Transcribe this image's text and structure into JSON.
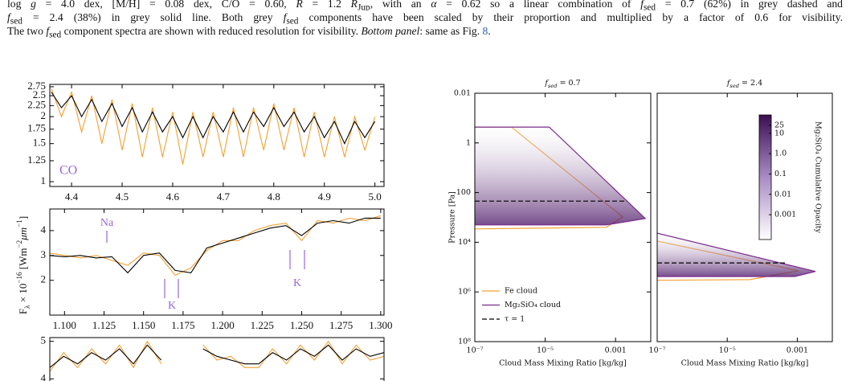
{
  "caption": {
    "lines": [
      [
        {
          "text": "log "
        },
        {
          "text": "g",
          "style": "italic"
        },
        {
          "text": " = 4.0 dex, [M/H] = 0.08 dex, C/O = 0.60, "
        },
        {
          "text": "R",
          "style": "italic"
        },
        {
          "text": " = 1.2 "
        },
        {
          "text": "R",
          "style": "italic"
        },
        {
          "text": "Jup",
          "style": "sub"
        },
        {
          "text": ", with an "
        },
        {
          "text": "α",
          "style": "italic"
        },
        {
          "text": " = 0.62 so a linear combination of "
        },
        {
          "text": "f",
          "style": "italic"
        },
        {
          "text": "sed",
          "style": "sub"
        },
        {
          "text": " = 0.7 (62%) in grey dashed and"
        }
      ],
      [
        {
          "text": "f",
          "style": "italic"
        },
        {
          "text": "sed",
          "style": "sub"
        },
        {
          "text": " = 2.4 (38%) in grey solid line. Both grey "
        },
        {
          "text": "f",
          "style": "italic"
        },
        {
          "text": "sed",
          "style": "sub"
        },
        {
          "text": " components have been scaled by their proportion and multiplied by a factor of 0.6 for visibility."
        }
      ],
      [
        {
          "text": "The two "
        },
        {
          "text": "f",
          "style": "italic"
        },
        {
          "text": "sed",
          "style": "sub"
        },
        {
          "text": " component spectra are shown with reduced resolution for visibility. "
        },
        {
          "text": "Bottom panel",
          "style": "italic"
        },
        {
          "text": ": same as Fig. "
        },
        {
          "text": "8",
          "style": "link"
        },
        {
          "text": "."
        }
      ]
    ]
  },
  "chart_data": [
    {
      "type": "line",
      "yscale": "log",
      "x": [
        4.36,
        4.38,
        4.4,
        4.42,
        4.44,
        4.46,
        4.48,
        4.5,
        4.52,
        4.54,
        4.56,
        4.58,
        4.6,
        4.62,
        4.64,
        4.66,
        4.68,
        4.7,
        4.72,
        4.74,
        4.76,
        4.78,
        4.8,
        4.82,
        4.84,
        4.86,
        4.88,
        4.9,
        4.92,
        4.94,
        4.96,
        4.98,
        5.0
      ],
      "series": [
        {
          "color": "#f5a030",
          "values": [
            2.7,
            2.0,
            2.6,
            1.7,
            2.5,
            1.5,
            2.4,
            1.4,
            2.3,
            1.3,
            2.2,
            1.3,
            2.1,
            1.2,
            2.1,
            1.3,
            2.1,
            1.3,
            2.2,
            1.3,
            2.2,
            1.4,
            2.3,
            1.4,
            2.2,
            1.3,
            2.1,
            1.3,
            2.0,
            1.3,
            2.0,
            1.4,
            2.0
          ]
        },
        {
          "color": "#000000",
          "values": [
            2.6,
            2.2,
            2.5,
            2.0,
            2.4,
            1.9,
            2.3,
            1.8,
            2.2,
            1.7,
            2.1,
            1.7,
            2.0,
            1.6,
            2.0,
            1.6,
            2.0,
            1.7,
            2.1,
            1.7,
            2.1,
            1.8,
            2.2,
            1.8,
            2.1,
            1.7,
            2.0,
            1.6,
            1.9,
            1.5,
            1.9,
            1.6,
            1.9
          ]
        }
      ],
      "xlim": [
        4.357,
        5.018
      ],
      "xticks": [
        4.4,
        4.5,
        4.6,
        4.7,
        4.8,
        4.9,
        {
          "value": 5,
          "label": "5.0"
        }
      ],
      "ylim": [
        0.95,
        2.82
      ],
      "yticks": [
        1,
        1.25,
        1.5,
        1.75,
        2,
        2.25,
        2.5,
        2.75
      ],
      "annotation_color": "#9966dd",
      "annotations": [
        {
          "text": "CO"
        }
      ]
    },
    {
      "type": "line",
      "yscale": "linear",
      "x": [
        1.09,
        1.1,
        1.11,
        1.12,
        1.13,
        1.14,
        1.15,
        1.16,
        1.17,
        1.18,
        1.19,
        1.2,
        1.21,
        1.22,
        1.23,
        1.24,
        1.25,
        1.26,
        1.27,
        1.28,
        1.29,
        1.3
      ],
      "series": [
        {
          "color": "#f5a030",
          "values": [
            3.1,
            3.0,
            2.9,
            3.0,
            2.8,
            2.6,
            3.1,
            3.0,
            2.2,
            2.5,
            3.2,
            3.6,
            3.6,
            4.0,
            4.2,
            4.3,
            3.6,
            4.4,
            4.3,
            4.5,
            4.4,
            4.6
          ]
        },
        {
          "color": "#000000",
          "values": [
            3.0,
            2.95,
            3.0,
            2.9,
            2.95,
            2.3,
            3.0,
            3.1,
            2.4,
            2.3,
            3.3,
            3.5,
            3.7,
            3.9,
            4.1,
            4.2,
            3.8,
            4.3,
            4.4,
            4.3,
            4.5,
            4.5
          ]
        }
      ],
      "xlim": [
        1.0907,
        1.3021
      ],
      "xticks": [
        {
          "value": 1.1,
          "label": "1.100"
        },
        1.125,
        {
          "value": 1.15,
          "label": "1.150"
        },
        1.175,
        {
          "value": 1.2,
          "label": "1.200"
        },
        1.225,
        {
          "value": 1.25,
          "label": "1.250"
        },
        1.275,
        {
          "value": 1.3,
          "label": "1.300"
        }
      ],
      "ylim": [
        0.6,
        4.87
      ],
      "yticks": [
        2,
        3,
        4
      ],
      "ylabel": [
        {
          "text": "F"
        },
        {
          "text": "λ",
          "style": "sub"
        },
        {
          "text": " × 10"
        },
        {
          "text": "−16",
          "style": "sup"
        },
        {
          "text": " [Wm"
        },
        {
          "text": "−2",
          "style": "sup"
        },
        {
          "text": "μm",
          "style": "italic"
        },
        {
          "text": "−1",
          "style": "sup"
        },
        {
          "text": "]"
        }
      ],
      "annotation_color": "#9966dd",
      "annotations": [
        {
          "text": "Na"
        },
        {
          "text": "K"
        },
        {
          "text": "K"
        }
      ]
    },
    {
      "type": "line",
      "yscale": "linear",
      "series": [
        {
          "color": "#f5a030",
          "values": [
            4.2,
            4.7,
            4.3,
            4.8,
            4.4,
            4.9,
            4.3,
            5.0,
            4.4,
            null,
            null,
            4.9,
            4.5,
            4.6,
            4.3,
            4.3,
            4.8,
            4.4,
            4.9,
            4.5,
            5.0,
            4.4,
            4.9,
            4.5,
            4.6
          ]
        },
        {
          "color": "#000000",
          "values": [
            4.3,
            4.6,
            4.4,
            4.7,
            4.5,
            4.8,
            4.4,
            4.9,
            4.5,
            null,
            null,
            4.8,
            4.6,
            4.5,
            4.4,
            4.4,
            4.7,
            4.5,
            4.8,
            4.6,
            4.9,
            4.5,
            4.8,
            4.6,
            4.7
          ]
        }
      ],
      "ylim": [
        3.6,
        5.1
      ],
      "yticks": [
        4,
        5
      ]
    },
    {
      "type": "line",
      "xscale": "log",
      "yscale": "log",
      "yaxis_inverted": true,
      "title": [
        {
          "text": "f",
          "style": "italic"
        },
        {
          "text": "sed",
          "style": "sub italic"
        },
        {
          "text": " = 0.7"
        }
      ],
      "series": [
        {
          "name": "Fe cloud",
          "color": "#f5a030",
          "x": [
            1e-07,
            1.1e-06,
            0.0016,
            0.00055,
            1e-07
          ],
          "values": [
            0.23,
            0.23,
            960,
            2500,
            2900
          ]
        },
        {
          "name": "Mg₂SiO₄ cloud",
          "color": "#7b2a8e",
          "shaded": true,
          "x": [
            1e-07,
            1.3e-05,
            0.007,
            0.00055,
            1e-07
          ],
          "values": [
            0.23,
            0.23,
            1100,
            2000,
            2000
          ]
        },
        {
          "name": "τ = 1",
          "color": "#000000",
          "dash": "dashed",
          "x": [
            1e-07,
            0.0021
          ],
          "values": [
            220,
            220
          ]
        }
      ],
      "xlim": [
        1e-07,
        0.01
      ],
      "xticks": [
        {
          "value": 1e-07,
          "label": "10⁻⁷"
        },
        {
          "value": 1e-05,
          "label": "10⁻⁵"
        },
        0.001
      ],
      "ylim": [
        0.01,
        100000000.0
      ],
      "yticks": [
        0.01,
        1,
        100,
        {
          "value": 10000,
          "label": "10⁴"
        },
        {
          "value": 1000000,
          "label": "10⁶"
        },
        {
          "value": 100000000,
          "label": "10⁸"
        }
      ],
      "xlabel": "Cloud Mass Mixing Ratio [kg/kg]",
      "ylabel": "Pressure [Pa]",
      "legend": "lower left"
    },
    {
      "type": "line",
      "xscale": "log",
      "yscale": "log",
      "yaxis_inverted": true,
      "title": [
        {
          "text": "f",
          "style": "italic"
        },
        {
          "text": "sed",
          "style": "sub italic"
        },
        {
          "text": " = 2.4"
        }
      ],
      "series": [
        {
          "color": "#f5a030",
          "x": [
            1e-07,
            0.0011,
            4.4e-05,
            1e-07
          ],
          "values": [
            9000,
            140000,
            320000,
            340000
          ]
        },
        {
          "color": "#7b2a8e",
          "shaded": true,
          "x": [
            1e-07,
            0.0033,
            0.00085,
            1e-07
          ],
          "values": [
            4300,
            150000,
            240000,
            240000
          ]
        },
        {
          "color": "#000000",
          "dash": "dashed",
          "x": [
            1e-07,
            0.00049
          ],
          "values": [
            68000,
            68000
          ]
        }
      ],
      "xlim": [
        1e-07,
        0.01
      ],
      "xticks": [
        {
          "value": 1e-07,
          "label": "10⁻⁷"
        },
        {
          "value": 1e-05,
          "label": "10⁻⁵"
        },
        0.001
      ],
      "ylim": [
        0.01,
        100000000.0
      ],
      "xlabel": "Cloud Mass Mixing Ratio [kg/kg]",
      "colorbar": {
        "scale": "log",
        "clim": [
          6e-05,
          80
        ],
        "ticks": [
          25,
          10,
          {
            "value": 1,
            "label": "1.0"
          },
          0.1,
          0.01,
          0.001
        ],
        "label": "Mg₂SiO₄ Cumulative Opacity"
      }
    }
  ]
}
